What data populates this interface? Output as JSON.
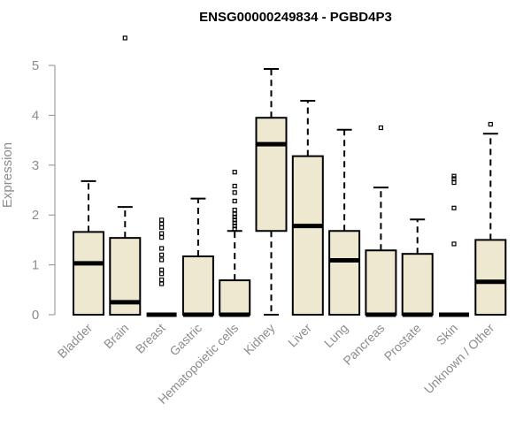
{
  "chart_data": {
    "type": "boxplot",
    "title": "ENSG00000249834 - PGBD4P3",
    "xlabel": "",
    "ylabel": "Expression",
    "ylim": [
      0,
      5.5
    ],
    "yticks": [
      0,
      1,
      2,
      3,
      4,
      5
    ],
    "grid": false,
    "box_color": "#efe8d0",
    "categories": [
      "Bladder",
      "Brain",
      "Breast",
      "Gastric",
      "Hematopoietic cells",
      "Kidney",
      "Liver",
      "Lung",
      "Pancreas",
      "Prostate",
      "Skin",
      "Unknown / Other"
    ],
    "series": [
      {
        "name": "Bladder",
        "min": 0,
        "q1": 0,
        "median": 1.03,
        "q3": 1.66,
        "max": 2.68,
        "outliers": []
      },
      {
        "name": "Brain",
        "min": 0,
        "q1": 0,
        "median": 0.25,
        "q3": 1.54,
        "max": 2.16,
        "outliers": [
          5.55
        ]
      },
      {
        "name": "Breast",
        "min": 0,
        "q1": 0,
        "median": 0,
        "q3": 0,
        "max": 0,
        "outliers": [
          0.62,
          0.7,
          0.82,
          0.9,
          1.1,
          1.2,
          1.33,
          1.55,
          1.63,
          1.75,
          1.82,
          1.9
        ]
      },
      {
        "name": "Gastric",
        "min": 0,
        "q1": 0,
        "median": 0,
        "q3": 1.17,
        "max": 2.33,
        "outliers": []
      },
      {
        "name": "Hematopoietic cells",
        "min": 0,
        "q1": 0,
        "median": 0,
        "q3": 0.69,
        "max": 1.68,
        "outliers": [
          1.72,
          1.78,
          1.84,
          1.9,
          1.96,
          2.02,
          2.1,
          2.28,
          2.45,
          2.58,
          2.86
        ]
      },
      {
        "name": "Kidney",
        "min": 0,
        "q1": 1.68,
        "median": 3.42,
        "q3": 3.95,
        "max": 4.93,
        "outliers": []
      },
      {
        "name": "Liver",
        "min": 0,
        "q1": 0,
        "median": 1.78,
        "q3": 3.18,
        "max": 4.29,
        "outliers": []
      },
      {
        "name": "Lung",
        "min": 0,
        "q1": 0,
        "median": 1.09,
        "q3": 1.68,
        "max": 3.71,
        "outliers": []
      },
      {
        "name": "Pancreas",
        "min": 0,
        "q1": 0,
        "median": 0,
        "q3": 1.29,
        "max": 2.55,
        "outliers": [
          3.75
        ]
      },
      {
        "name": "Prostate",
        "min": 0,
        "q1": 0,
        "median": 0,
        "q3": 1.22,
        "max": 1.91,
        "outliers": []
      },
      {
        "name": "Skin",
        "min": 0,
        "q1": 0,
        "median": 0,
        "q3": 0,
        "max": 0,
        "outliers": [
          1.42,
          2.14,
          2.65,
          2.73,
          2.78
        ]
      },
      {
        "name": "Unknown / Other",
        "min": 0,
        "q1": 0,
        "median": 0.66,
        "q3": 1.5,
        "max": 3.63,
        "outliers": [
          3.82
        ]
      }
    ]
  }
}
